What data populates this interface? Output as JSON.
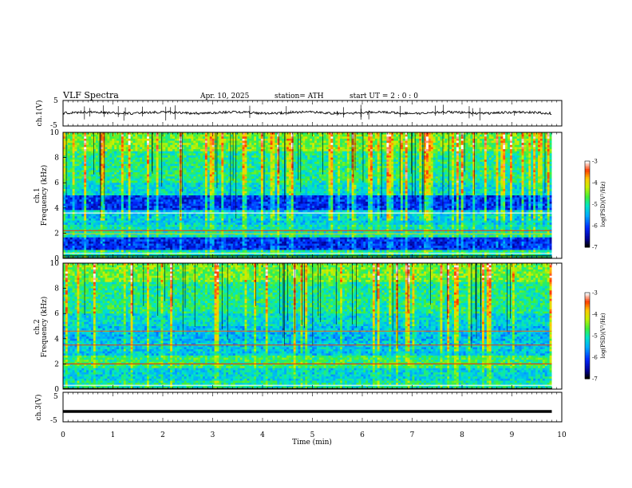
{
  "header": {
    "title": "VLF  Spectra",
    "date": "Apr. 10, 2025",
    "station": "station= ATH",
    "start_ut": "start  UT  =   2  : 0  : 0"
  },
  "chart_data": [
    {
      "type": "line",
      "panel": "ch1-waveform",
      "ylabel": "ch.1(V)",
      "ylim": [
        -5,
        5
      ],
      "yticks": [
        "5",
        "-5"
      ],
      "xlim": [
        0,
        10
      ],
      "baseline_v": 0.2
    },
    {
      "type": "heatmap",
      "panel": "ch1-spectrogram",
      "ylabel_top": "ch.1",
      "ylabel": "Frequency  (kHz)",
      "ylim": [
        0,
        10
      ],
      "yticks": [
        "0",
        "2",
        "4",
        "6",
        "8",
        "10"
      ],
      "xlim": [
        0,
        9.8
      ],
      "colorbar": {
        "label": "log(PSD)(V²/Hz)",
        "range": [
          -7,
          -3
        ],
        "ticks": [
          "-3",
          "-4",
          "-5",
          "-6",
          "-7"
        ]
      }
    },
    {
      "type": "heatmap",
      "panel": "ch2-spectrogram",
      "ylabel_top": "ch.2",
      "ylabel": "Frequency  (kHz)",
      "ylim": [
        0,
        10
      ],
      "yticks": [
        "0",
        "2",
        "4",
        "6",
        "8",
        "10"
      ],
      "xlim": [
        0,
        9.8
      ],
      "colorbar": {
        "label": "log(PSD)(V²/Hz)",
        "range": [
          -7,
          -3
        ],
        "ticks": [
          "-3",
          "-4",
          "-5",
          "-6",
          "-7"
        ]
      }
    },
    {
      "type": "line",
      "panel": "ch3-waveform",
      "ylabel": "ch.3(V)",
      "ylim": [
        -5,
        5
      ],
      "yticks": [
        "5",
        "-5"
      ],
      "xlim": [
        0,
        9.8
      ],
      "baseline_v": -1.5
    }
  ],
  "xaxis": {
    "label": "Time  (min)",
    "ticks": [
      "0",
      "1",
      "2",
      "3",
      "4",
      "5",
      "6",
      "7",
      "8",
      "9",
      "10"
    ],
    "range": [
      0,
      10
    ]
  }
}
